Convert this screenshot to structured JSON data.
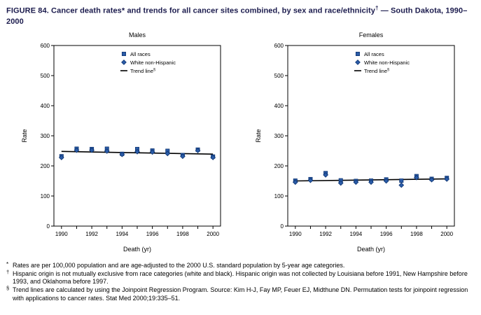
{
  "figure": {
    "title_part1": "FIGURE 84. Cancer death rates* and trends for all cancer sites combined, by sex and race/ethnicity",
    "title_sup": "†",
    "title_part2": " — South Dakota, 1990–2000"
  },
  "colors": {
    "point": "#2b5ca8",
    "point_stroke": "#0e3572",
    "trend": "#000000",
    "axis": "#000000",
    "title_text": "#1b1b4d"
  },
  "chart_data": [
    {
      "type": "scatter",
      "title": "Males",
      "xlabel": "Death (yr)",
      "ylabel": "Rate",
      "ylim": [
        0,
        600
      ],
      "yticks": [
        0,
        100,
        200,
        300,
        400,
        500,
        600
      ],
      "x": [
        1990,
        1991,
        1992,
        1993,
        1994,
        1995,
        1996,
        1997,
        1998,
        1999,
        2000
      ],
      "xticks": [
        1990,
        1992,
        1994,
        1996,
        1998,
        2000
      ],
      "grid": false,
      "legend_position": "top-center",
      "series": [
        {
          "name": "All races",
          "marker": "square",
          "values": [
            232,
            257,
            256,
            257,
            240,
            256,
            251,
            250,
            236,
            254,
            231
          ]
        },
        {
          "name": "White non-Hispanic",
          "marker": "diamond",
          "values": [
            228,
            252,
            252,
            249,
            238,
            247,
            246,
            241,
            232,
            251,
            228
          ]
        },
        {
          "name": "Trend line",
          "sup": "§",
          "marker": "line",
          "trend": [
            248,
            239
          ]
        }
      ]
    },
    {
      "type": "scatter",
      "title": "Females",
      "xlabel": "Death (yr)",
      "ylabel": "Rate",
      "ylim": [
        0,
        600
      ],
      "yticks": [
        0,
        100,
        200,
        300,
        400,
        500,
        600
      ],
      "x": [
        1990,
        1991,
        1992,
        1993,
        1994,
        1995,
        1996,
        1997,
        1998,
        1999,
        2000
      ],
      "xticks": [
        1990,
        1992,
        1994,
        1996,
        1998,
        2000
      ],
      "grid": false,
      "legend_position": "top-center",
      "series": [
        {
          "name": "All races",
          "marker": "square",
          "values": [
            151,
            156,
            176,
            152,
            150,
            151,
            155,
            151,
            166,
            157,
            160
          ]
        },
        {
          "name": "White non-Hispanic",
          "marker": "diamond",
          "values": [
            146,
            152,
            170,
            143,
            146,
            146,
            150,
            136,
            161,
            154,
            156
          ]
        },
        {
          "name": "Trend line",
          "sup": "§",
          "marker": "line",
          "trend": [
            150,
            157
          ]
        }
      ]
    }
  ],
  "footnotes": [
    {
      "marker": "*",
      "raised": false,
      "text": "Rates are per 100,000 population and are age-adjusted to the 2000 U.S. standard population by 5-year age categories."
    },
    {
      "marker": "†",
      "raised": true,
      "text": "Hispanic origin is not mutually exclusive from race categories (white and black). Hispanic origin was not collected by Louisiana before 1991, New Hampshire before 1993, and Oklahoma before 1997."
    },
    {
      "marker": "§",
      "raised": true,
      "text": "Trend lines are calculated by using the Joinpoint Regression Program. Source: Kim H-J, Fay MP, Feuer EJ, Midthune DN. Permutation tests for joinpoint regression with applications to cancer rates. Stat Med 2000;19:335–51."
    }
  ]
}
